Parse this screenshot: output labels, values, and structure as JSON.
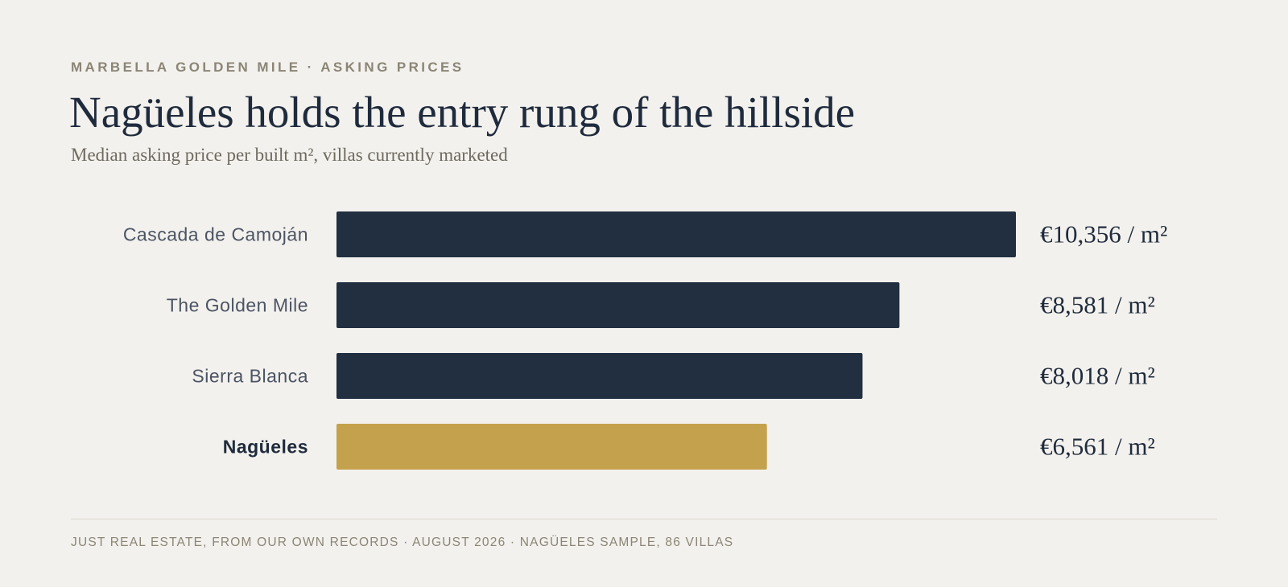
{
  "header": {
    "kicker": "MARBELLA GOLDEN MILE · ASKING PRICES",
    "title": "Nagüeles holds the entry rung of the hillside",
    "subtitle": "Median asking price per built m², villas currently marketed"
  },
  "footer": {
    "source": "JUST REAL ESTATE, FROM OUR OWN RECORDS · AUGUST 2026 · NAGÜELES SAMPLE, 86 VILLAS"
  },
  "colors": {
    "default_bar": "#212f41",
    "highlight_bar": "#c4a24d",
    "background": "#f3f1ed"
  },
  "chart_data": {
    "type": "bar",
    "orientation": "horizontal",
    "categories": [
      "Cascada de Camoján",
      "The Golden Mile",
      "Sierra Blanca",
      "Nagüeles"
    ],
    "values": [
      10356,
      8581,
      8018,
      6561
    ],
    "value_labels": [
      "€10,356 / m²",
      "€8,581 / m²",
      "€8,018 / m²",
      "€6,561 / m²"
    ],
    "highlight": "Nagüeles",
    "xlim": [
      0,
      10356
    ],
    "grid": false
  }
}
